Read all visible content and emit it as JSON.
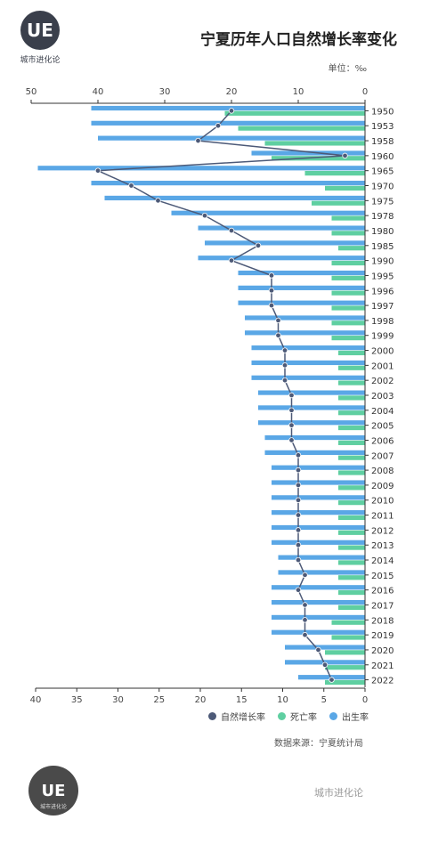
{
  "title": "宁夏历年人口自然增长率变化",
  "unit": "单位：‰",
  "source": "数据来源：宁夏统计局",
  "brand": "城市进化论",
  "logo_top": {
    "mark": "UE",
    "text": "城市进化论"
  },
  "logo_bottom": {
    "mark": "UE",
    "text": "城市进化论"
  },
  "colors": {
    "birth": "#5aa7e6",
    "death": "#5fcfa1",
    "growth": "#4d5a78"
  },
  "chart_data": {
    "type": "bar",
    "orientation": "horizontal",
    "categories": [
      "1950",
      "1953",
      "1958",
      "1960",
      "1965",
      "1970",
      "1975",
      "1978",
      "1980",
      "1985",
      "1990",
      "1995",
      "1996",
      "1997",
      "1998",
      "1999",
      "2000",
      "2001",
      "2002",
      "2003",
      "2004",
      "2005",
      "2006",
      "2007",
      "2008",
      "2009",
      "2010",
      "2011",
      "2012",
      "2013",
      "2014",
      "2015",
      "2016",
      "2017",
      "2018",
      "2019",
      "2020",
      "2021",
      "2022"
    ],
    "series": [
      {
        "name": "出生率",
        "type": "bar",
        "values": [
          41,
          41,
          40,
          17,
          49,
          41,
          39,
          29,
          25,
          24,
          25,
          19,
          19,
          19,
          18,
          18,
          17,
          17,
          17,
          16,
          16,
          16,
          15,
          15,
          14,
          14,
          14,
          14,
          14,
          14,
          13,
          13,
          14,
          14,
          14,
          14,
          12,
          12,
          10
        ]
      },
      {
        "name": "死亡率",
        "type": "bar",
        "values": [
          21,
          19,
          15,
          14,
          9,
          6,
          8,
          5,
          5,
          4,
          5,
          5,
          5,
          5,
          5,
          5,
          4,
          4,
          4,
          4,
          4,
          4,
          4,
          4,
          4,
          4,
          4,
          4,
          4,
          4,
          4,
          4,
          4,
          4,
          5,
          5,
          6,
          6,
          6
        ]
      },
      {
        "name": "自然增长率",
        "type": "line",
        "values": [
          20,
          22,
          25,
          3,
          40,
          35,
          31,
          24,
          20,
          16,
          20,
          14,
          14,
          14,
          13,
          13,
          12,
          12,
          12,
          11,
          11,
          11,
          11,
          10,
          10,
          10,
          10,
          10,
          10,
          10,
          10,
          9,
          10,
          9,
          9,
          9,
          7,
          6,
          5
        ]
      }
    ],
    "axis_top": {
      "ticks": [
        50,
        40,
        30,
        20,
        10,
        0
      ],
      "range": [
        0,
        50
      ],
      "reversed": true
    },
    "axis_bottom": {
      "ticks": [
        40,
        35,
        30,
        25,
        20,
        15,
        10,
        5,
        0
      ],
      "range": [
        0,
        40
      ],
      "reversed": true
    },
    "legend_position": "bottom",
    "grid": false
  }
}
